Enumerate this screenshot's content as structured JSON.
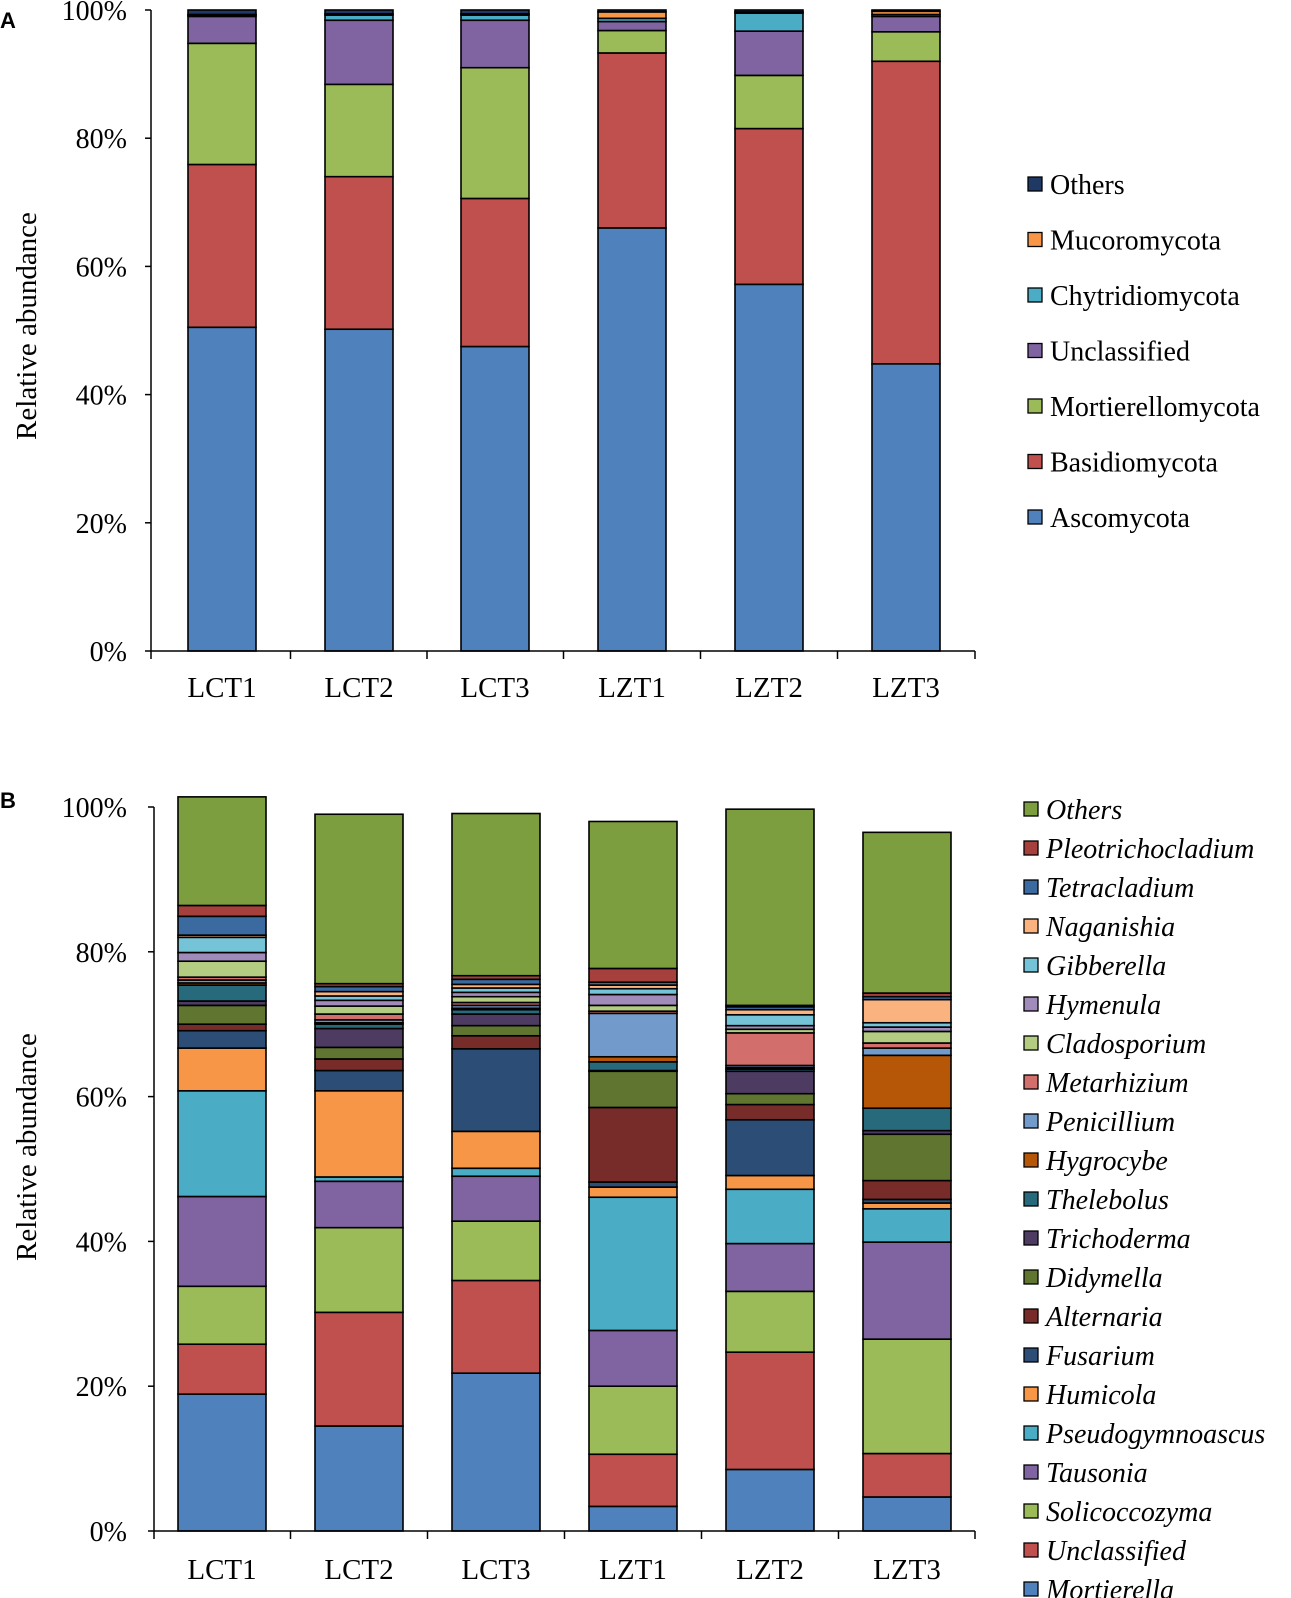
{
  "chart_data": [
    {
      "type": "bar",
      "stacked": true,
      "panel": "A",
      "categories": [
        "LCT1",
        "LCT2",
        "LCT3",
        "LZT1",
        "LZT2",
        "LZT3"
      ],
      "ylabel": "Relative abundance",
      "xlabel": "",
      "ylim": [
        0,
        100
      ],
      "yticks": [
        "0%",
        "20%",
        "40%",
        "60%",
        "80%",
        "100%"
      ],
      "legend_position": "right",
      "series": [
        {
          "name": "Ascomycota",
          "color": "#4F81BD",
          "values": [
            50.5,
            50.2,
            47.5,
            66,
            57.2,
            44.8
          ]
        },
        {
          "name": "Basidiomycota",
          "color": "#C0504D",
          "values": [
            25.4,
            23.8,
            23.1,
            27.3,
            24.3,
            47.2
          ]
        },
        {
          "name": "Mortierellomycota",
          "color": "#9BBB59",
          "values": [
            18.9,
            14.4,
            20.4,
            3.5,
            8.3,
            4.6
          ]
        },
        {
          "name": "Unclassified",
          "color": "#8064A2",
          "values": [
            4.2,
            10,
            7.4,
            1.4,
            6.9,
            2.4
          ]
        },
        {
          "name": "Chytridiomycota",
          "color": "#4BACC6",
          "values": [
            0.2,
            0.8,
            0.8,
            0.5,
            2.8,
            0.3
          ]
        },
        {
          "name": "Mucoromycota",
          "color": "#F79646",
          "values": [
            0.1,
            0.2,
            0.2,
            1,
            0.2,
            0.5
          ]
        },
        {
          "name": "Others",
          "color": "#1F3864",
          "values": [
            0.7,
            0.6,
            0.6,
            0.3,
            0.3,
            0.2
          ]
        }
      ]
    },
    {
      "type": "bar",
      "stacked": true,
      "panel": "B",
      "categories": [
        "LCT1",
        "LCT2",
        "LCT3",
        "LZT1",
        "LZT2",
        "LZT3"
      ],
      "ylabel": "Relative abundance",
      "xlabel": "",
      "ylim": [
        0,
        100
      ],
      "yticks": [
        "0%",
        "20%",
        "40%",
        "60%",
        "80%",
        "100%"
      ],
      "legend_position": "right",
      "series": [
        {
          "name": "Mortierella",
          "color": "#4F81BD",
          "values": [
            18.9,
            14.5,
            21.8,
            3.4,
            8.5,
            4.7
          ]
        },
        {
          "name": "Unclassified",
          "color": "#C0504D",
          "values": [
            6.9,
            15.7,
            12.8,
            7.2,
            16.2,
            6.0
          ]
        },
        {
          "name": "Solicoccozyma",
          "color": "#9BBB59",
          "values": [
            8,
            11.7,
            8.2,
            9.4,
            8.4,
            15.8
          ]
        },
        {
          "name": "Tausonia",
          "color": "#8064A2",
          "values": [
            12.4,
            6.4,
            6.2,
            7.7,
            6.6,
            13.4
          ]
        },
        {
          "name": "Pseudogymnoascus",
          "color": "#4BACC6",
          "values": [
            14.6,
            0.6,
            1.1,
            18.4,
            7.5,
            4.6
          ]
        },
        {
          "name": "Humicola",
          "color": "#F79646",
          "values": [
            5.9,
            11.9,
            5.1,
            1.4,
            1.9,
            0.8
          ]
        },
        {
          "name": "Fusarium",
          "color": "#2C4D75",
          "values": [
            2.4,
            2.8,
            11.4,
            0.7,
            7.7,
            0.5
          ]
        },
        {
          "name": "Alternaria",
          "color": "#772C2A",
          "values": [
            0.9,
            1.6,
            1.8,
            10.3,
            2.1,
            2.6
          ]
        },
        {
          "name": "Didymella",
          "color": "#5F7530",
          "values": [
            2.6,
            1.6,
            1.4,
            5.0,
            1.5,
            6.4
          ]
        },
        {
          "name": "Trichoderma",
          "color": "#4D3B62",
          "values": [
            0.6,
            2.6,
            1.6,
            0.1,
            3.1,
            0.5
          ]
        },
        {
          "name": "Thelebolus",
          "color": "#276A7C",
          "values": [
            2.2,
            0.6,
            0.6,
            1.2,
            0.3,
            3.1
          ]
        },
        {
          "name": "Hygrocybe",
          "color": "#B65708",
          "values": [
            0.3,
            0.2,
            0.2,
            0.7,
            0.2,
            7.3
          ]
        },
        {
          "name": "Penicillium",
          "color": "#729ACA",
          "values": [
            0.4,
            0.4,
            0.4,
            6.0,
            0.3,
            1.0
          ]
        },
        {
          "name": "Metarhizium",
          "color": "#D26E6B",
          "values": [
            0.4,
            0.8,
            0.4,
            0.3,
            4.5,
            0.7
          ]
        },
        {
          "name": "Cladosporium",
          "color": "#B3CC82",
          "values": [
            2.2,
            1.1,
            0.8,
            0.8,
            0.5,
            1.6
          ]
        },
        {
          "name": "Hymenula",
          "color": "#A08BBA",
          "values": [
            1.2,
            0.8,
            0.6,
            1.5,
            0.5,
            0.6
          ]
        },
        {
          "name": "Gibberella",
          "color": "#75C3D7",
          "values": [
            2.1,
            0.6,
            0.6,
            0.8,
            1.5,
            0.6
          ]
        },
        {
          "name": "Naganishia",
          "color": "#FAB27F",
          "values": [
            0.3,
            0.6,
            0.5,
            0.5,
            0.7,
            3.2
          ]
        },
        {
          "name": "Tetracladium",
          "color": "#3B6AA0",
          "values": [
            2.6,
            0.7,
            0.7,
            0.4,
            0.4,
            0.4
          ]
        },
        {
          "name": "Pleotrichocladium",
          "color": "#A5403D",
          "values": [
            1.5,
            0.4,
            0.5,
            1.9,
            0.2,
            0.5
          ]
        },
        {
          "name": "Others",
          "color": "#7D9E3F",
          "values": [
            15,
            23.4,
            22.4,
            20.3,
            27.1,
            22.2
          ]
        }
      ]
    }
  ]
}
